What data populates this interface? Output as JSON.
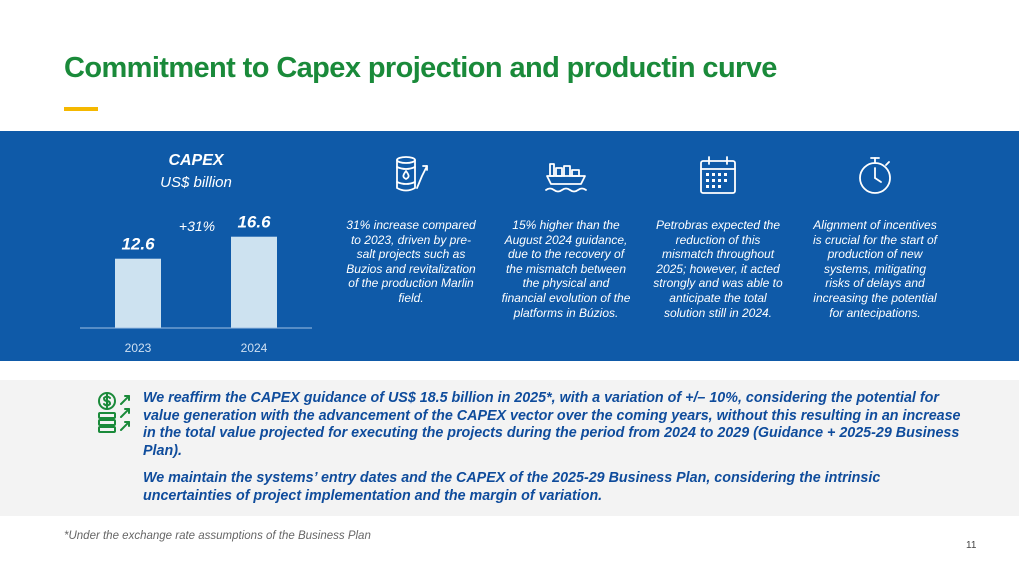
{
  "title": "Commitment to Capex projection and productin curve",
  "chart_data": {
    "type": "bar",
    "title": "CAPEX",
    "subtitle": "US$ billion",
    "categories": [
      "2023",
      "2024"
    ],
    "values": [
      12.6,
      16.6
    ],
    "value_labels": [
      "12.6",
      "16.6"
    ],
    "annotation": "+31%",
    "ylim": [
      0,
      20
    ],
    "grid": false,
    "bar_color": "#cde2f0",
    "xlabel": "",
    "ylabel": ""
  },
  "columns": [
    {
      "icon": "oil-barrel-icon",
      "text": "31% increase compared to 2023, driven by pre-salt projects such as Buzios and revitalization of the production Marlin field."
    },
    {
      "icon": "ship-platform-icon",
      "text": "15% higher than the August 2024 guidance, due to the recovery of the mismatch between the physical and financial evolution of the platforms in Búzios."
    },
    {
      "icon": "calendar-icon",
      "text": "Petrobras expected the reduction of this mismatch throughout 2025; however, it acted strongly and was able to anticipate the total solution still in 2024."
    },
    {
      "icon": "stopwatch-icon",
      "text": "Alignment of incentives is crucial for the start of production of new systems, mitigating risks of delays and increasing the potential for antecipations."
    }
  ],
  "guidance": {
    "icon": "money-growth-icon",
    "paragraph1": "We reaffirm the CAPEX guidance of US$ 18.5 billion in 2025*, with a variation of +/– 10%, considering the potential for value generation with the advancement of the CAPEX vector over the coming years, without this resulting in an increase in the total value projected for executing the projects during the period from 2024 to 2029 (Guidance + 2025-29 Business Plan).",
    "paragraph2": "We maintain the systems’ entry dates and the CAPEX of the 2025-29 Business Plan, considering the intrinsic uncertainties of project implementation and the margin of variation."
  },
  "footnote": "*Under the exchange rate assumptions of the Business Plan",
  "page_number": "11",
  "colors": {
    "title_green": "#1a8a3a",
    "accent_yellow": "#f5b800",
    "band_blue": "#0f5aa8",
    "text_blue": "#0f4c9c",
    "icon_green": "#1a8a3a"
  }
}
